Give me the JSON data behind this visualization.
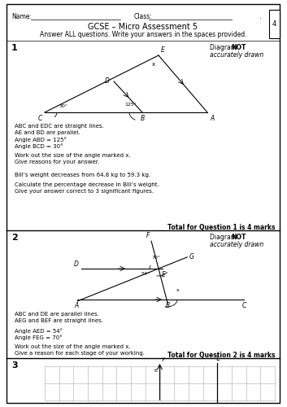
{
  "title": "GCSE – Micro Assessment 5",
  "subtitle": "Answer ALL questions. Write your answers in the spaces provided.",
  "name_label": "Name: ___________________",
  "class_label": "Class: ___________________",
  "dot_label": ".",
  "q1_number": "1",
  "q1_diagram_note": "Diagram NOT\naccurately drawn",
  "q1_text1": "ABC and EDC are straight lines.",
  "q1_text2": "AE and BD are parallel.",
  "q1_text3": "Angle ABD = 125°",
  "q1_text4": "Angle BCD = 30°",
  "q1_text5": "Work out the size of the angle marked x.",
  "q1_text6": "Give reasons for your answer.",
  "q1_text7": "Bill’s weight decreases from 64.8 kg to 59.3 kg.",
  "q1_text8": "Calculate the percentage decrease in Bill’s weight.",
  "q1_text9": "Give your answer correct to 3 significant figures.",
  "q1_total": "Total for Question 1 is 4 marks",
  "q2_number": "2",
  "q2_diagram_note": "Diagram NOT\naccurately drawn",
  "q2_text1": "ABC and DE are parallel lines.",
  "q2_text2": "AEG and BEF are straight lines.",
  "q2_text3": "Angle AED = 54°",
  "q2_text4": "Angle FEG = 70°",
  "q2_text5": "Work out the size of the angle marked x.",
  "q2_text6": "Give a reason for each stage of your working.",
  "q2_total": "Total for Question 2 is 4 marks",
  "q3_number": "3",
  "q3_y_label": "y",
  "q3_L_label": "L",
  "q3_6_label": "6",
  "bg_color": "#ffffff",
  "border_color": "#000000",
  "text_color": "#000000"
}
